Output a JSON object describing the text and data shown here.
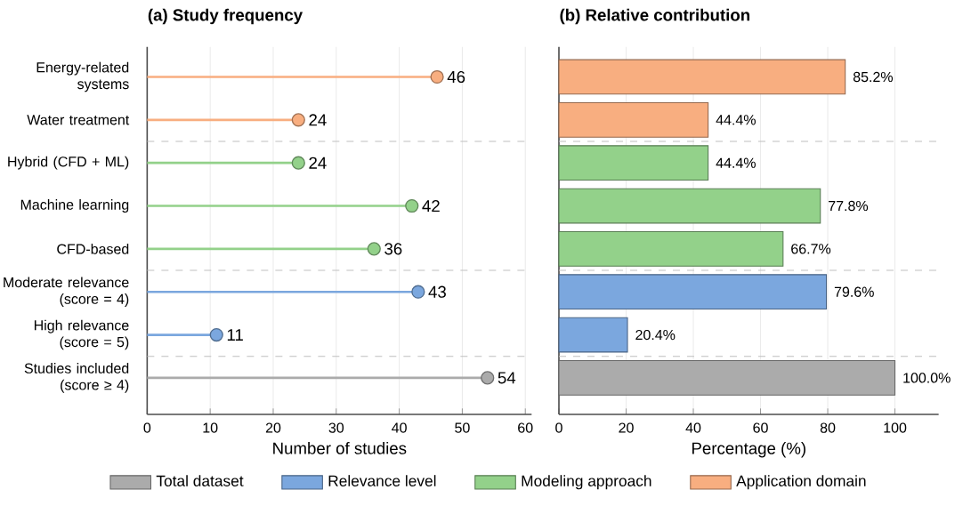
{
  "chart_data": [
    {
      "type": "lollipop",
      "orientation": "horizontal",
      "title": "(a) Study frequency",
      "xlabel": "Number of studies",
      "categories": [
        "Energy-related systems",
        "Water treatment",
        "Hybrid (CFD + ML)",
        "Machine learning",
        "CFD-based",
        "Moderate relevance (score = 4)",
        "High relevance (score = 5)",
        "Studies included (score ≥ 4)"
      ],
      "series": [
        {
          "color": "#ababab",
          "values": [
            null,
            null,
            null,
            null,
            null,
            null,
            null,
            54
          ]
        },
        {
          "color": "#7ba7de",
          "values": [
            null,
            null,
            null,
            null,
            null,
            43,
            11,
            null
          ]
        },
        {
          "color": "#93d18a",
          "values": [
            null,
            null,
            24,
            42,
            36,
            null,
            null,
            null
          ]
        },
        {
          "color": "#f8ae80",
          "values": [
            46,
            24,
            null,
            null,
            null,
            null,
            null,
            null
          ]
        }
      ],
      "xlim": [
        0,
        61
      ],
      "xticks": [
        0,
        10,
        20,
        30,
        40,
        50,
        60
      ],
      "grid": "x",
      "marker": "circle",
      "data_labels": true
    },
    {
      "type": "bar",
      "orientation": "horizontal",
      "title": "(b) Relative contribution",
      "xlabel": "Percentage (%)",
      "categories": [
        null,
        null,
        null,
        null,
        null,
        null,
        null,
        null
      ],
      "series": [
        {
          "name": "Total dataset",
          "color": "#ababab",
          "values": [
            null,
            null,
            null,
            null,
            null,
            null,
            null,
            100.0
          ],
          "value_labels": [
            null,
            null,
            null,
            null,
            null,
            null,
            null,
            "100.0%"
          ]
        },
        {
          "name": "Relevance level",
          "color": "#7ba7de",
          "values": [
            null,
            null,
            null,
            null,
            null,
            79.6,
            20.4,
            null
          ],
          "value_labels": [
            null,
            null,
            null,
            null,
            null,
            "79.6%",
            "20.4%",
            null
          ]
        },
        {
          "name": "Modeling approach",
          "color": "#93d18a",
          "values": [
            null,
            null,
            44.4,
            77.8,
            66.7,
            null,
            null,
            null
          ],
          "value_labels": [
            null,
            null,
            "44.4%",
            "77.8%",
            "66.7%",
            null,
            null,
            null
          ]
        },
        {
          "name": "Application domain",
          "color": "#f8ae80",
          "values": [
            85.2,
            44.4,
            null,
            null,
            null,
            null,
            null,
            null
          ],
          "value_labels": [
            "85.2%",
            "44.4%",
            null,
            null,
            null,
            null,
            null,
            null
          ]
        }
      ],
      "xlim": [
        0,
        113
      ],
      "xticks": [
        0,
        20,
        40,
        60,
        80,
        100
      ],
      "grid": "x",
      "legend": "bottom",
      "tick_labels": "x"
    }
  ]
}
